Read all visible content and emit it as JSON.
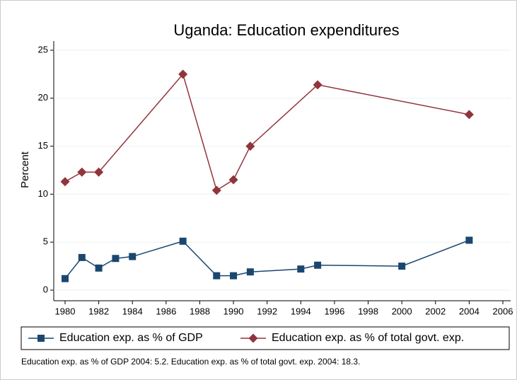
{
  "chart_data": {
    "type": "line",
    "title": "Uganda: Education expenditures",
    "y_label": "Percent",
    "note": "Education exp. as % of GDP 2004: 5.2. Education exp. as % of total govt. exp. 2004: 18.3.",
    "xlim": [
      1980,
      2006
    ],
    "xticks": [
      1980,
      1982,
      1984,
      1986,
      1988,
      1990,
      1992,
      1994,
      1996,
      1998,
      2000,
      2002,
      2004,
      2006
    ],
    "ylim": [
      0,
      25
    ],
    "yticks": [
      0,
      5,
      10,
      15,
      20,
      25
    ],
    "grid": true,
    "series": [
      {
        "name": "Education exp. as % of GDP",
        "color": "#1a476f",
        "marker": "square",
        "x": [
          1980,
          1981,
          1982,
          1983,
          1984,
          1987,
          1989,
          1990,
          1991,
          1994,
          1995,
          2000,
          2004
        ],
        "values": [
          1.2,
          3.4,
          2.3,
          3.3,
          3.5,
          5.1,
          1.5,
          1.5,
          1.9,
          2.2,
          2.6,
          2.5,
          5.2
        ]
      },
      {
        "name": "Education exp. as % of total govt. exp.",
        "color": "#90353b",
        "marker": "diamond",
        "x": [
          1980,
          1981,
          1982,
          1987,
          1989,
          1990,
          1991,
          1995,
          2004
        ],
        "values": [
          11.3,
          12.3,
          12.3,
          22.5,
          10.4,
          11.5,
          15.0,
          21.4,
          18.3
        ]
      }
    ]
  }
}
